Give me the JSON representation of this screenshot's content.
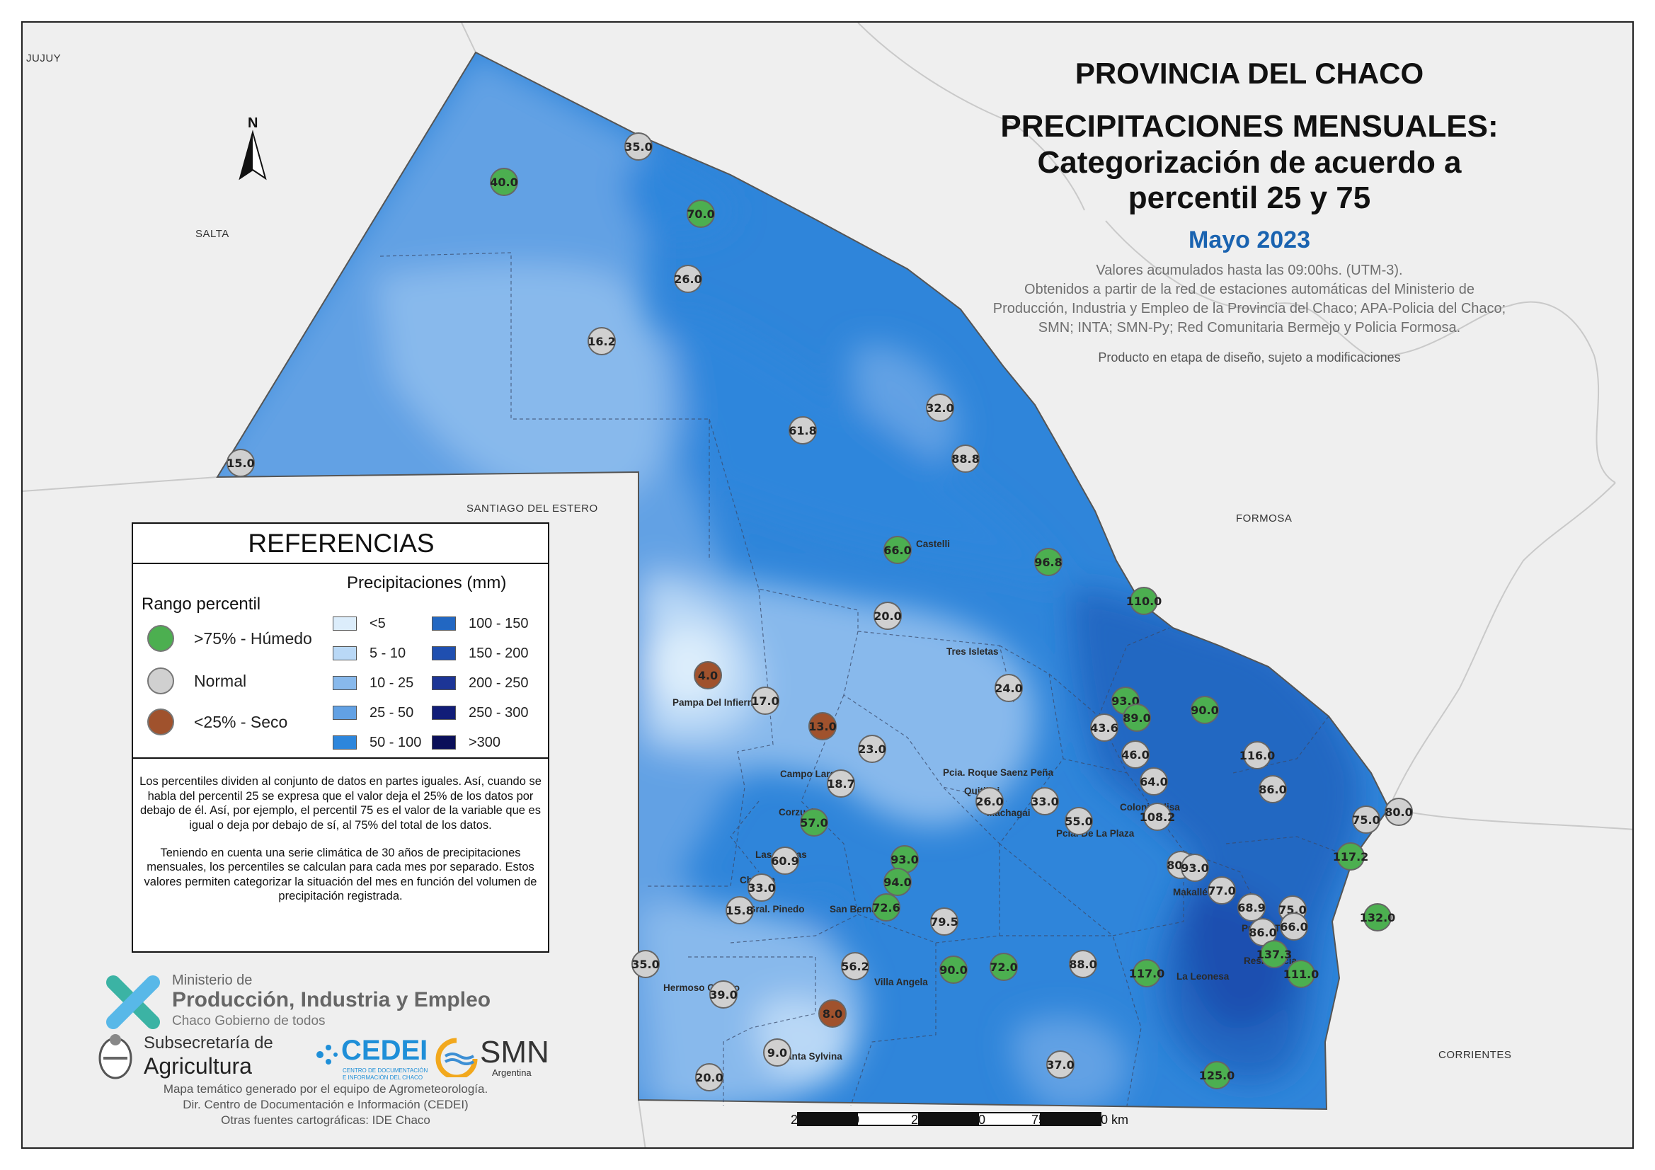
{
  "title": {
    "line1": "PROVINCIA DEL CHACO",
    "line2a": "PRECIPITACIONES MENSUALES:",
    "line2b": "Categorización de acuerdo a",
    "line2c": "percentil 25 y 75",
    "period": "Mayo 2023",
    "note1": "Valores acumulados hasta las 09:00hs. (UTM-3).",
    "note2": "Obtenidos a partir de la red de estaciones automáticas del Ministerio de",
    "note3": "Producción, Industria y Empleo de la Provincia del Chaco; APA-Policia del Chaco;",
    "note4": "SMN; INTA; SMN-Py; Red Comunitaria Bermejo y Policia Formosa.",
    "disclaimer": "Producto en etapa de diseño, sujeto a modificaciones"
  },
  "regions": {
    "jujuy": "JUJUY",
    "salta": "SALTA",
    "santiago": "SANTIAGO DEL ESTERO",
    "formosa": "FORMOSA",
    "corrientes": "CORRIENTES"
  },
  "legend": {
    "heading": "REFERENCIAS",
    "percentile_title": "Rango percentil",
    "precip_title": "Precipitaciones (mm)",
    "categories": [
      {
        "label": ">75% - Húmedo",
        "color": "#4caf50"
      },
      {
        "label": "Normal",
        "color": "#d0d0d0"
      },
      {
        "label": "<25% - Seco",
        "color": "#a0522d"
      }
    ],
    "classes": [
      {
        "label": "<5",
        "color": "#dcedfb"
      },
      {
        "label": "5 - 10",
        "color": "#b9d8f6"
      },
      {
        "label": "10 - 25",
        "color": "#88b9ec"
      },
      {
        "label": "25 - 50",
        "color": "#62a1e4"
      },
      {
        "label": "50 - 100",
        "color": "#2d86dc"
      },
      {
        "label": "100 - 150",
        "color": "#2267c2"
      },
      {
        "label": "150 - 200",
        "color": "#1f4fb0"
      },
      {
        "label": "200 - 250",
        "color": "#1c3596"
      },
      {
        "label": "250 - 300",
        "color": "#111d78"
      },
      {
        "label": ">300",
        "color": "#0a0f59"
      }
    ],
    "note_p1": "Los percentiles dividen al conjunto de datos en partes iguales. Así, cuando se habla del percentil 25 se expresa que el valor deja el 25% de los datos por debajo de él. Así, por ejemplo, el percentil 75 es el valor de la variable que es igual o deja por debajo de sí, al 75% del total de los datos.",
    "note_p2": "Teniendo en cuenta una serie climática de 30 años de precipitaciones mensuales, los percentiles se calculan para cada mes por separado. Estos valores permiten categorizar la situación del mes en función del volumen de precipitación registrada."
  },
  "north": "N",
  "scale": {
    "labels": [
      "25",
      "0",
      "25",
      "50",
      "75",
      "100 km"
    ]
  },
  "logos": {
    "ministry1": "Ministerio de",
    "ministry2": "Producción, Industria y Empleo",
    "ministry3": "Chaco Gobierno de todos",
    "sub1": "Subsecretaría de",
    "sub2": "Agricultura",
    "cedei": "CEDEI",
    "cedei_sub1": "CENTRO DE DOCUMENTACIÓN",
    "cedei_sub2": "E INFORMACIÓN DEL CHACO",
    "smn": "SMN",
    "smn_sub": "Argentina"
  },
  "credits": {
    "line1": "Mapa temático generado por el equipo de Agrometeorología.",
    "line2": "Dir. Centro de Documentación e Información (CEDEI)",
    "line3": "Otras fuentes cartográficas: IDE Chaco"
  },
  "localities": [
    {
      "name": "Castelli"
    },
    {
      "name": "Tres Isletas"
    },
    {
      "name": "Pampa Del Infierno"
    },
    {
      "name": "Campo Largo"
    },
    {
      "name": "Pcia. Roque Saenz Peña"
    },
    {
      "name": "Quitilipi"
    },
    {
      "name": "Machagai"
    },
    {
      "name": "Corzuela"
    },
    {
      "name": "Las Breñas"
    },
    {
      "name": "Charata"
    },
    {
      "name": "Gral. Pinedo"
    },
    {
      "name": "San Bernardo"
    },
    {
      "name": "Pcia. De La Plaza"
    },
    {
      "name": "Colonia Elisa"
    },
    {
      "name": "Makallé"
    },
    {
      "name": "Puerto Tirol"
    },
    {
      "name": "Resistencia"
    },
    {
      "name": "Villa Angela"
    },
    {
      "name": "Hermoso Campo"
    },
    {
      "name": "Santa Sylvina"
    },
    {
      "name": "La Leonesa"
    }
  ],
  "stations": [
    {
      "value": "35.0",
      "cat": "normal"
    },
    {
      "value": "40.0",
      "cat": "humedo"
    },
    {
      "value": "70.0",
      "cat": "humedo"
    },
    {
      "value": "26.0",
      "cat": "normal"
    },
    {
      "value": "16.2",
      "cat": "normal"
    },
    {
      "value": "15.0",
      "cat": "normal"
    },
    {
      "value": "32.0",
      "cat": "normal"
    },
    {
      "value": "61.8",
      "cat": "normal"
    },
    {
      "value": "88.8",
      "cat": "normal"
    },
    {
      "value": "66.0",
      "cat": "humedo"
    },
    {
      "value": "96.8",
      "cat": "humedo"
    },
    {
      "value": "110.0",
      "cat": "humedo"
    },
    {
      "value": "20.0",
      "cat": "normal"
    },
    {
      "value": "4.0",
      "cat": "seco"
    },
    {
      "value": "17.0",
      "cat": "normal"
    },
    {
      "value": "13.0",
      "cat": "seco"
    },
    {
      "value": "24.0",
      "cat": "normal"
    },
    {
      "value": "93.0",
      "cat": "humedo"
    },
    {
      "value": "89.0",
      "cat": "humedo"
    },
    {
      "value": "43.6",
      "cat": "normal"
    },
    {
      "value": "90.0",
      "cat": "humedo"
    },
    {
      "value": "23.0",
      "cat": "normal"
    },
    {
      "value": "46.0",
      "cat": "normal"
    },
    {
      "value": "116.0",
      "cat": "normal"
    },
    {
      "value": "18.7",
      "cat": "normal"
    },
    {
      "value": "64.0",
      "cat": "normal"
    },
    {
      "value": "86.0",
      "cat": "normal"
    },
    {
      "value": "26.0",
      "cat": "normal"
    },
    {
      "value": "33.0",
      "cat": "normal"
    },
    {
      "value": "55.0",
      "cat": "normal"
    },
    {
      "value": "108.2",
      "cat": "normal"
    },
    {
      "value": "80.0",
      "cat": "normal"
    },
    {
      "value": "75.0",
      "cat": "normal"
    },
    {
      "value": "57.0",
      "cat": "humedo"
    },
    {
      "value": "117.2",
      "cat": "humedo"
    },
    {
      "value": "60.9",
      "cat": "normal"
    },
    {
      "value": "93.0",
      "cat": "humedo"
    },
    {
      "value": "80.0",
      "cat": "normal"
    },
    {
      "value": "93.0",
      "cat": "normal"
    },
    {
      "value": "94.0",
      "cat": "humedo"
    },
    {
      "value": "33.0",
      "cat": "normal"
    },
    {
      "value": "77.0",
      "cat": "normal"
    },
    {
      "value": "72.6",
      "cat": "humedo"
    },
    {
      "value": "15.8",
      "cat": "normal"
    },
    {
      "value": "68.9",
      "cat": "normal"
    },
    {
      "value": "75.0",
      "cat": "normal"
    },
    {
      "value": "79.5",
      "cat": "normal"
    },
    {
      "value": "86.0",
      "cat": "normal"
    },
    {
      "value": "66.0",
      "cat": "normal"
    },
    {
      "value": "132.0",
      "cat": "humedo"
    },
    {
      "value": "137.3",
      "cat": "humedo"
    },
    {
      "value": "35.0",
      "cat": "normal"
    },
    {
      "value": "56.2",
      "cat": "normal"
    },
    {
      "value": "90.0",
      "cat": "humedo"
    },
    {
      "value": "72.0",
      "cat": "humedo"
    },
    {
      "value": "88.0",
      "cat": "normal"
    },
    {
      "value": "117.0",
      "cat": "humedo"
    },
    {
      "value": "111.0",
      "cat": "humedo"
    },
    {
      "value": "39.0",
      "cat": "normal"
    },
    {
      "value": "8.0",
      "cat": "seco"
    },
    {
      "value": "9.0",
      "cat": "normal"
    },
    {
      "value": "37.0",
      "cat": "normal"
    },
    {
      "value": "125.0",
      "cat": "humedo"
    },
    {
      "value": "20.0",
      "cat": "normal"
    }
  ]
}
